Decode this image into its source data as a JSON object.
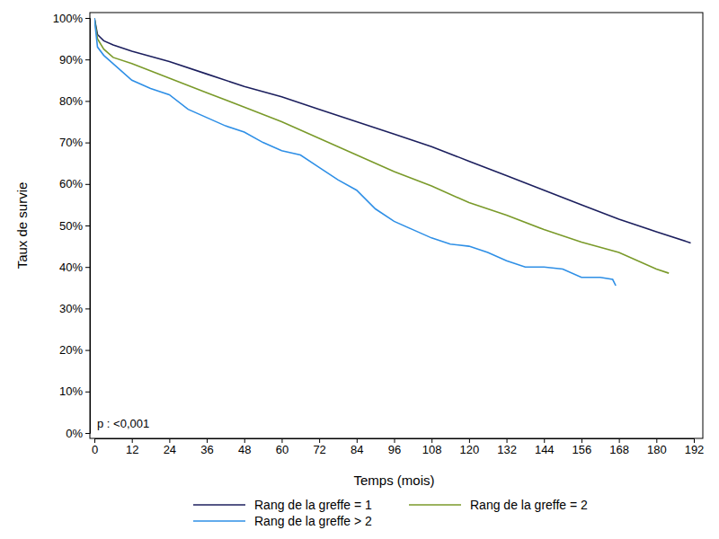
{
  "chart_data": {
    "type": "line",
    "x_label": "Temps (mois)",
    "y_label": "Taux de survie",
    "annotation": "p : <0,001",
    "legend": "bottom",
    "xlim": [
      0,
      192
    ],
    "xticks": [
      0,
      12,
      24,
      36,
      48,
      60,
      72,
      84,
      96,
      108,
      120,
      132,
      144,
      156,
      168,
      180,
      192
    ],
    "ylim": [
      0,
      100
    ],
    "yticks": [
      {
        "value": 0,
        "label": "0%"
      },
      {
        "value": 10,
        "label": "10%"
      },
      {
        "value": 20,
        "label": "20%"
      },
      {
        "value": 30,
        "label": "30%"
      },
      {
        "value": 40,
        "label": "40%"
      },
      {
        "value": 50,
        "label": "50%"
      },
      {
        "value": 60,
        "label": "60%"
      },
      {
        "value": 70,
        "label": "70%"
      },
      {
        "value": 80,
        "label": "80%"
      },
      {
        "value": 90,
        "label": "90%"
      },
      {
        "value": 100,
        "label": "100%"
      }
    ],
    "series": [
      {
        "name": "Rang de la greffe = 1",
        "color": "#1c1f5e",
        "x": [
          0,
          1,
          3,
          6,
          12,
          24,
          36,
          48,
          60,
          72,
          84,
          96,
          108,
          120,
          132,
          144,
          156,
          168,
          180,
          191
        ],
        "values": [
          100,
          96,
          94.5,
          93.5,
          92,
          89.5,
          86.5,
          83.5,
          81,
          78,
          75,
          72,
          69,
          65.5,
          62,
          58.5,
          55,
          51.5,
          48.5,
          45.8
        ]
      },
      {
        "name": "Rang de la greffe = 2",
        "color": "#7a9a2a",
        "x": [
          0,
          1,
          3,
          6,
          12,
          24,
          36,
          48,
          60,
          72,
          84,
          96,
          108,
          120,
          132,
          144,
          156,
          168,
          180,
          184
        ],
        "values": [
          100,
          95,
          92.5,
          90.5,
          89,
          85.5,
          82,
          78.5,
          75,
          71,
          67,
          63,
          59.5,
          55.5,
          52.5,
          49,
          46,
          43.5,
          39.5,
          38.5
        ]
      },
      {
        "name": "Rang de la greffe > 2",
        "color": "#2e8fe6",
        "x": [
          0,
          1,
          3,
          6,
          12,
          18,
          24,
          30,
          36,
          42,
          48,
          54,
          60,
          66,
          72,
          78,
          84,
          90,
          96,
          102,
          108,
          114,
          120,
          126,
          132,
          138,
          144,
          150,
          156,
          162,
          166,
          167
        ],
        "values": [
          100,
          93,
          91,
          89,
          85,
          83,
          81.5,
          78,
          76,
          74,
          72.5,
          70,
          68,
          67,
          64,
          61,
          58.5,
          54,
          51,
          49,
          47,
          45.5,
          45,
          43.5,
          41.5,
          40,
          40,
          39.5,
          37.5,
          37.5,
          37,
          35.5
        ]
      }
    ]
  }
}
